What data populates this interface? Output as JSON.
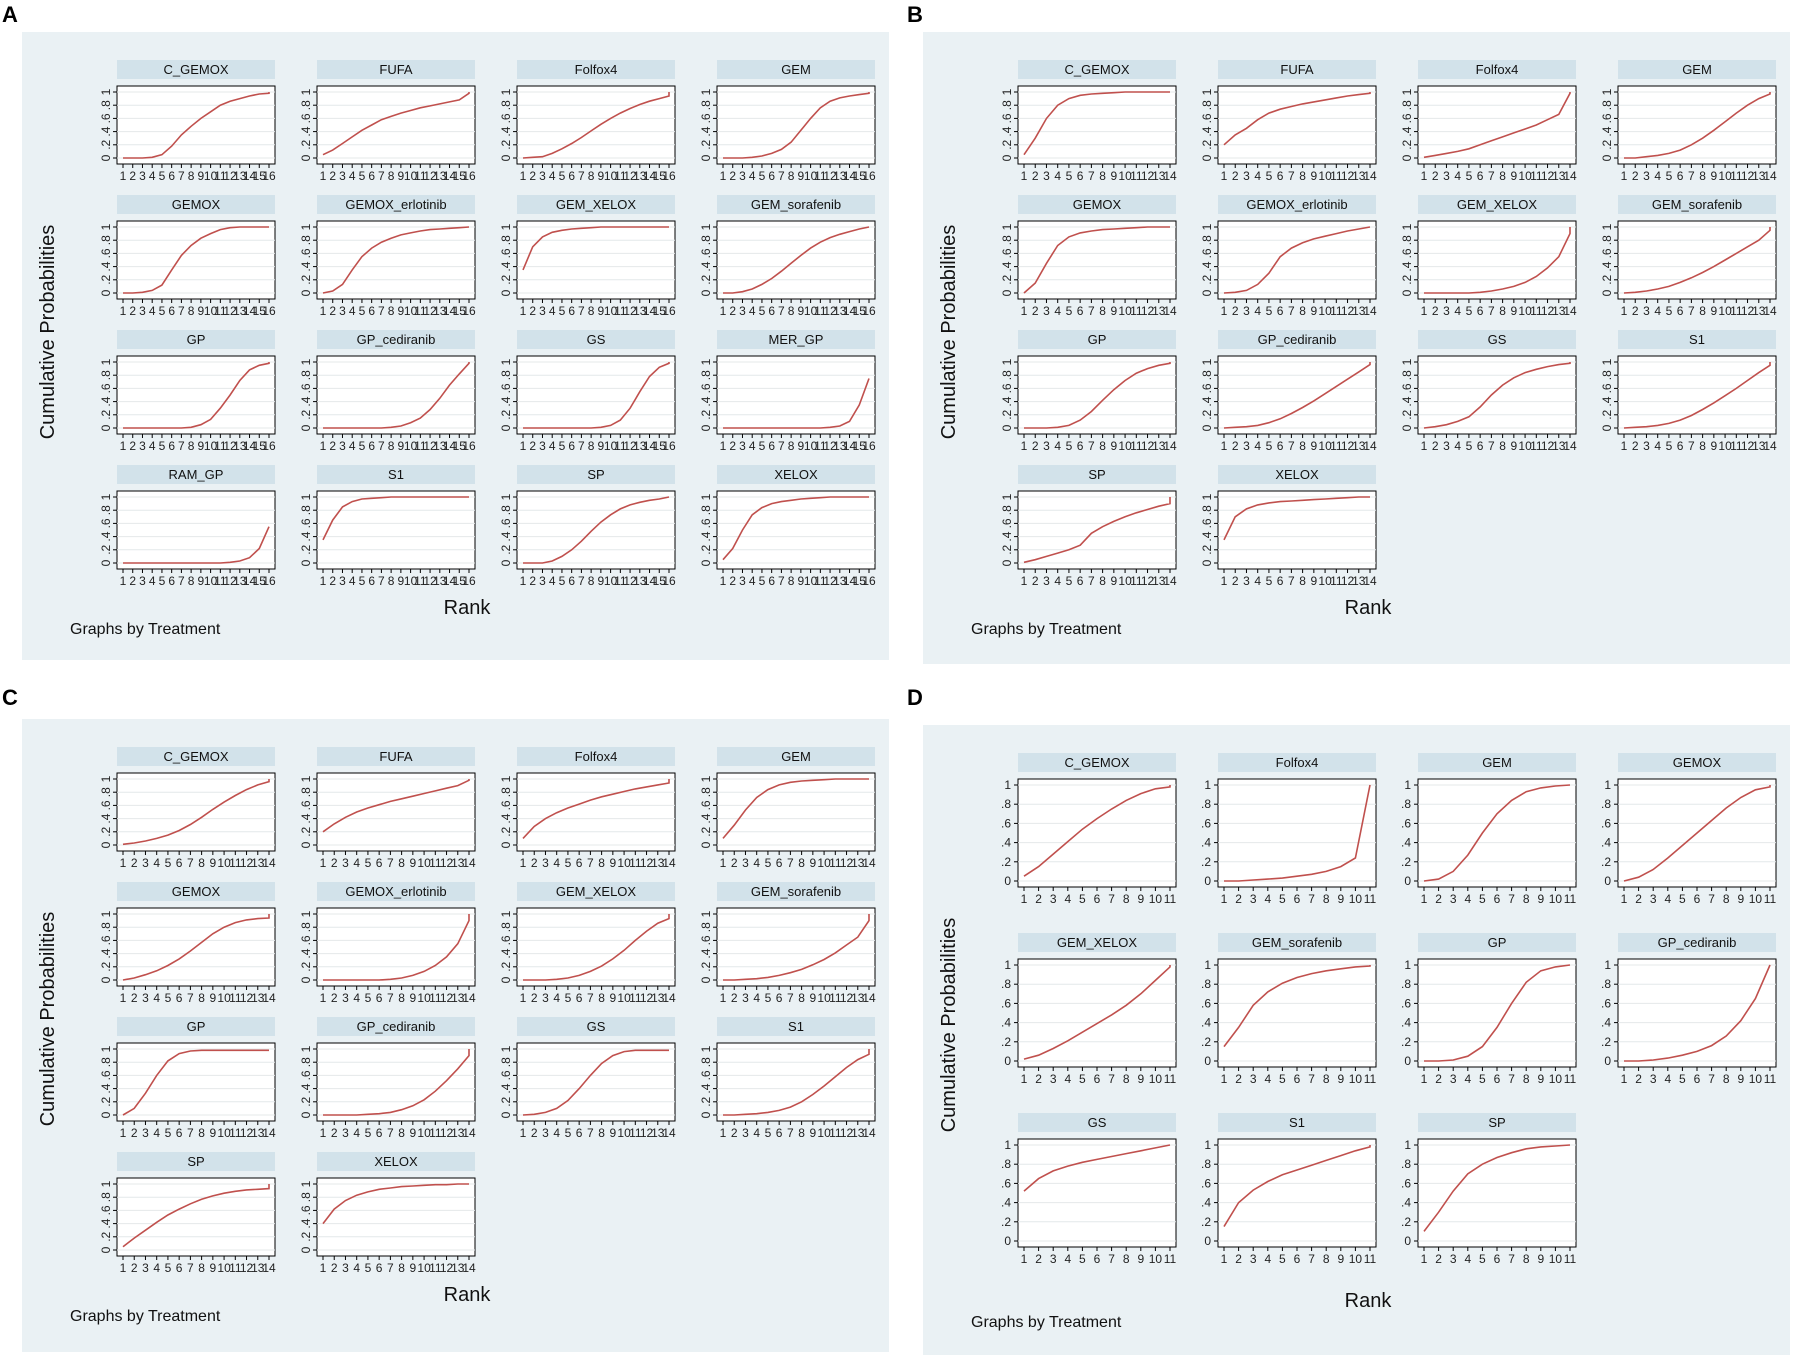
{
  "chart_data": [
    {
      "type": "line",
      "panel": "A",
      "ylabel": "Cumulative Probabilities",
      "xlabel": "Rank",
      "note": "Graphs by Treatment",
      "ranks": 16,
      "ylim": [
        0,
        1
      ],
      "ytick_labels": [
        "0",
        ".2",
        ".4",
        ".6",
        ".8",
        "1"
      ],
      "series": [
        {
          "name": "C_GEMOX",
          "values": [
            0,
            0,
            0,
            0.01,
            0.05,
            0.18,
            0.35,
            0.48,
            0.6,
            0.7,
            0.8,
            0.86,
            0.9,
            0.94,
            0.97,
            0.98
          ]
        },
        {
          "name": "FUFA",
          "values": [
            0.05,
            0.12,
            0.22,
            0.32,
            0.42,
            0.5,
            0.58,
            0.63,
            0.68,
            0.72,
            0.76,
            0.79,
            0.82,
            0.85,
            0.88,
            0.98
          ]
        },
        {
          "name": "Folfox4",
          "values": [
            0,
            0.01,
            0.02,
            0.07,
            0.14,
            0.22,
            0.31,
            0.41,
            0.51,
            0.6,
            0.68,
            0.75,
            0.81,
            0.86,
            0.9,
            0.94
          ]
        },
        {
          "name": "GEM",
          "values": [
            0,
            0,
            0,
            0.01,
            0.03,
            0.07,
            0.13,
            0.24,
            0.42,
            0.6,
            0.76,
            0.86,
            0.91,
            0.94,
            0.96,
            0.98
          ]
        },
        {
          "name": "GEMOX",
          "values": [
            0,
            0,
            0.01,
            0.04,
            0.12,
            0.35,
            0.57,
            0.72,
            0.83,
            0.9,
            0.96,
            0.99,
            1,
            1,
            1,
            1
          ]
        },
        {
          "name": "GEMOX_erlotinib",
          "values": [
            0,
            0.03,
            0.13,
            0.35,
            0.55,
            0.68,
            0.77,
            0.83,
            0.88,
            0.91,
            0.94,
            0.96,
            0.97,
            0.98,
            0.99,
            1
          ]
        },
        {
          "name": "GEM_XELOX",
          "values": [
            0.35,
            0.7,
            0.85,
            0.92,
            0.95,
            0.97,
            0.98,
            0.99,
            1,
            1,
            1,
            1,
            1,
            1,
            1,
            1
          ]
        },
        {
          "name": "GEM_sorafenib",
          "values": [
            0,
            0,
            0.02,
            0.06,
            0.13,
            0.22,
            0.33,
            0.45,
            0.57,
            0.68,
            0.77,
            0.84,
            0.89,
            0.93,
            0.97,
            1
          ]
        },
        {
          "name": "GP",
          "values": [
            0,
            0,
            0,
            0,
            0,
            0,
            0,
            0.01,
            0.05,
            0.13,
            0.3,
            0.5,
            0.72,
            0.88,
            0.95,
            0.98
          ]
        },
        {
          "name": "GP_cediranib",
          "values": [
            0,
            0,
            0,
            0,
            0,
            0,
            0,
            0.01,
            0.03,
            0.08,
            0.15,
            0.28,
            0.45,
            0.65,
            0.82,
            0.98
          ]
        },
        {
          "name": "GS",
          "values": [
            0,
            0,
            0,
            0,
            0,
            0,
            0,
            0,
            0.01,
            0.04,
            0.12,
            0.3,
            0.55,
            0.78,
            0.92,
            0.98
          ]
        },
        {
          "name": "MER_GP",
          "values": [
            0,
            0,
            0,
            0,
            0,
            0,
            0,
            0,
            0,
            0,
            0,
            0.01,
            0.03,
            0.1,
            0.35,
            0.75
          ]
        },
        {
          "name": "RAM_GP",
          "values": [
            0,
            0,
            0,
            0,
            0,
            0,
            0,
            0,
            0,
            0,
            0,
            0.01,
            0.03,
            0.08,
            0.22,
            0.55
          ]
        },
        {
          "name": "S1",
          "values": [
            0.35,
            0.65,
            0.85,
            0.93,
            0.97,
            0.98,
            0.99,
            1,
            1,
            1,
            1,
            1,
            1,
            1,
            1,
            1
          ]
        },
        {
          "name": "SP",
          "values": [
            0,
            0,
            0,
            0.03,
            0.1,
            0.2,
            0.33,
            0.48,
            0.62,
            0.73,
            0.82,
            0.88,
            0.92,
            0.95,
            0.97,
            1
          ]
        },
        {
          "name": "XELOX",
          "values": [
            0.05,
            0.22,
            0.5,
            0.73,
            0.84,
            0.9,
            0.93,
            0.95,
            0.97,
            0.98,
            0.99,
            1,
            1,
            1,
            1,
            1
          ]
        }
      ]
    },
    {
      "type": "line",
      "panel": "B",
      "ylabel": "Cumulative Probabilities",
      "xlabel": "Rank",
      "note": "Graphs by Treatment",
      "ranks": 14,
      "ylim": [
        0,
        1
      ],
      "ytick_labels": [
        "0",
        ".2",
        ".4",
        ".6",
        ".8",
        "1"
      ],
      "series": [
        {
          "name": "C_GEMOX",
          "values": [
            0.05,
            0.3,
            0.6,
            0.8,
            0.9,
            0.95,
            0.97,
            0.98,
            0.99,
            1,
            1,
            1,
            1,
            1
          ]
        },
        {
          "name": "FUFA",
          "values": [
            0.2,
            0.35,
            0.45,
            0.58,
            0.68,
            0.74,
            0.78,
            0.82,
            0.85,
            0.88,
            0.91,
            0.94,
            0.96,
            0.98
          ]
        },
        {
          "name": "Folfox4",
          "values": [
            0.01,
            0.04,
            0.07,
            0.1,
            0.14,
            0.2,
            0.26,
            0.32,
            0.38,
            0.44,
            0.5,
            0.58,
            0.66,
            0.98
          ]
        },
        {
          "name": "GEM",
          "values": [
            0,
            0,
            0.02,
            0.04,
            0.07,
            0.12,
            0.2,
            0.3,
            0.42,
            0.55,
            0.68,
            0.8,
            0.9,
            0.97
          ]
        },
        {
          "name": "GEMOX",
          "values": [
            0,
            0.15,
            0.45,
            0.72,
            0.85,
            0.91,
            0.94,
            0.96,
            0.97,
            0.98,
            0.99,
            1,
            1,
            1
          ]
        },
        {
          "name": "GEMOX_erlotinib",
          "values": [
            0,
            0.01,
            0.04,
            0.13,
            0.3,
            0.55,
            0.68,
            0.76,
            0.82,
            0.86,
            0.9,
            0.94,
            0.97,
            1
          ]
        },
        {
          "name": "GEM_XELOX",
          "values": [
            0,
            0,
            0,
            0,
            0,
            0.01,
            0.03,
            0.06,
            0.1,
            0.16,
            0.25,
            0.38,
            0.55,
            0.9
          ]
        },
        {
          "name": "GEM_sorafenib",
          "values": [
            0,
            0.01,
            0.03,
            0.06,
            0.1,
            0.16,
            0.23,
            0.31,
            0.4,
            0.5,
            0.6,
            0.7,
            0.8,
            0.95
          ]
        },
        {
          "name": "GP",
          "values": [
            0,
            0,
            0,
            0.01,
            0.04,
            0.12,
            0.25,
            0.42,
            0.58,
            0.72,
            0.83,
            0.9,
            0.95,
            0.98
          ]
        },
        {
          "name": "GP_cediranib",
          "values": [
            0,
            0.01,
            0.02,
            0.04,
            0.08,
            0.14,
            0.22,
            0.31,
            0.41,
            0.52,
            0.63,
            0.74,
            0.85,
            0.96
          ]
        },
        {
          "name": "GS",
          "values": [
            0,
            0.02,
            0.05,
            0.1,
            0.17,
            0.32,
            0.5,
            0.65,
            0.76,
            0.84,
            0.89,
            0.93,
            0.96,
            0.98
          ]
        },
        {
          "name": "S1",
          "values": [
            0,
            0.01,
            0.02,
            0.04,
            0.07,
            0.12,
            0.19,
            0.28,
            0.38,
            0.49,
            0.6,
            0.72,
            0.84,
            0.95
          ]
        },
        {
          "name": "SP",
          "values": [
            0.01,
            0.05,
            0.1,
            0.15,
            0.2,
            0.27,
            0.45,
            0.55,
            0.63,
            0.7,
            0.76,
            0.81,
            0.86,
            0.9
          ]
        },
        {
          "name": "XELOX",
          "values": [
            0.35,
            0.7,
            0.82,
            0.88,
            0.91,
            0.93,
            0.94,
            0.95,
            0.96,
            0.97,
            0.98,
            0.99,
            1,
            1
          ]
        }
      ]
    },
    {
      "type": "line",
      "panel": "C",
      "ylabel": "Cumulative Probabilities",
      "xlabel": "Rank",
      "note": "Graphs by Treatment",
      "ranks": 14,
      "ylim": [
        0,
        1
      ],
      "ytick_labels": [
        "0",
        ".2",
        ".4",
        ".6",
        ".8",
        "1"
      ],
      "series": [
        {
          "name": "C_GEMOX",
          "values": [
            0.01,
            0.03,
            0.06,
            0.1,
            0.15,
            0.22,
            0.31,
            0.42,
            0.54,
            0.65,
            0.75,
            0.84,
            0.91,
            0.96
          ]
        },
        {
          "name": "FUFA",
          "values": [
            0.2,
            0.32,
            0.42,
            0.5,
            0.56,
            0.61,
            0.66,
            0.7,
            0.74,
            0.78,
            0.82,
            0.86,
            0.9,
            0.98
          ]
        },
        {
          "name": "Folfox4",
          "values": [
            0.1,
            0.28,
            0.4,
            0.49,
            0.56,
            0.62,
            0.68,
            0.73,
            0.77,
            0.81,
            0.85,
            0.88,
            0.91,
            0.94
          ]
        },
        {
          "name": "GEM",
          "values": [
            0.1,
            0.3,
            0.53,
            0.72,
            0.84,
            0.91,
            0.95,
            0.97,
            0.98,
            0.99,
            1,
            1,
            1,
            1
          ]
        },
        {
          "name": "GEMOX",
          "values": [
            0,
            0.03,
            0.08,
            0.14,
            0.22,
            0.32,
            0.44,
            0.57,
            0.7,
            0.8,
            0.87,
            0.91,
            0.93,
            0.94
          ]
        },
        {
          "name": "GEMOX_erlotinib",
          "values": [
            0,
            0,
            0,
            0,
            0,
            0,
            0.01,
            0.03,
            0.07,
            0.13,
            0.22,
            0.35,
            0.55,
            0.9
          ]
        },
        {
          "name": "GEM_XELOX",
          "values": [
            0,
            0,
            0,
            0.01,
            0.03,
            0.07,
            0.13,
            0.21,
            0.32,
            0.45,
            0.6,
            0.74,
            0.86,
            0.93
          ]
        },
        {
          "name": "GEM_sorafenib",
          "values": [
            0,
            0,
            0.01,
            0.02,
            0.04,
            0.07,
            0.11,
            0.16,
            0.23,
            0.31,
            0.41,
            0.53,
            0.65,
            0.9
          ]
        },
        {
          "name": "GP",
          "values": [
            0,
            0.1,
            0.33,
            0.6,
            0.82,
            0.93,
            0.97,
            0.98,
            0.98,
            0.98,
            0.98,
            0.98,
            0.98,
            0.98
          ]
        },
        {
          "name": "GP_cediranib",
          "values": [
            0,
            0,
            0,
            0,
            0.01,
            0.02,
            0.04,
            0.08,
            0.14,
            0.23,
            0.36,
            0.52,
            0.7,
            0.9
          ]
        },
        {
          "name": "GS",
          "values": [
            0,
            0.01,
            0.04,
            0.1,
            0.22,
            0.4,
            0.6,
            0.78,
            0.9,
            0.96,
            0.98,
            0.98,
            0.98,
            0.98
          ]
        },
        {
          "name": "S1",
          "values": [
            0,
            0,
            0.01,
            0.02,
            0.04,
            0.07,
            0.12,
            0.2,
            0.31,
            0.44,
            0.58,
            0.72,
            0.84,
            0.92
          ]
        },
        {
          "name": "SP",
          "values": [
            0.05,
            0.18,
            0.3,
            0.42,
            0.53,
            0.62,
            0.7,
            0.77,
            0.82,
            0.86,
            0.89,
            0.91,
            0.92,
            0.93
          ]
        },
        {
          "name": "XELOX",
          "values": [
            0.4,
            0.62,
            0.75,
            0.83,
            0.88,
            0.92,
            0.94,
            0.96,
            0.97,
            0.98,
            0.99,
            0.99,
            1,
            1
          ]
        }
      ]
    },
    {
      "type": "line",
      "panel": "D",
      "ylabel": "Cumulative Probabilities",
      "xlabel": "Rank",
      "note": "Graphs by Treatment",
      "ranks": 11,
      "ylim": [
        0,
        1
      ],
      "ytick_labels": [
        "0",
        ".2",
        ".4",
        ".6",
        ".8",
        "1"
      ],
      "series": [
        {
          "name": "C_GEMOX",
          "values": [
            0.05,
            0.15,
            0.28,
            0.41,
            0.54,
            0.65,
            0.75,
            0.84,
            0.91,
            0.96,
            0.98
          ]
        },
        {
          "name": "Folfox4",
          "values": [
            0,
            0,
            0.01,
            0.02,
            0.03,
            0.05,
            0.07,
            0.1,
            0.15,
            0.24,
            1
          ]
        },
        {
          "name": "GEM",
          "values": [
            0,
            0.02,
            0.1,
            0.27,
            0.5,
            0.7,
            0.84,
            0.93,
            0.97,
            0.99,
            1
          ]
        },
        {
          "name": "GEMOX",
          "values": [
            0,
            0.04,
            0.12,
            0.24,
            0.37,
            0.5,
            0.63,
            0.76,
            0.87,
            0.95,
            0.98
          ]
        },
        {
          "name": "GEM_XELOX",
          "values": [
            0.02,
            0.06,
            0.13,
            0.21,
            0.3,
            0.39,
            0.48,
            0.58,
            0.7,
            0.84,
            0.98
          ]
        },
        {
          "name": "GEM_sorafenib",
          "values": [
            0.15,
            0.35,
            0.58,
            0.72,
            0.81,
            0.87,
            0.91,
            0.94,
            0.96,
            0.98,
            0.99
          ]
        },
        {
          "name": "GP",
          "values": [
            0,
            0,
            0.01,
            0.05,
            0.15,
            0.35,
            0.6,
            0.82,
            0.94,
            0.98,
            1
          ]
        },
        {
          "name": "GP_cediranib",
          "values": [
            0,
            0,
            0.01,
            0.03,
            0.06,
            0.1,
            0.16,
            0.26,
            0.42,
            0.65,
            1
          ]
        },
        {
          "name": "GS",
          "values": [
            0.52,
            0.65,
            0.73,
            0.78,
            0.82,
            0.85,
            0.88,
            0.91,
            0.94,
            0.97,
            1
          ]
        },
        {
          "name": "S1",
          "values": [
            0.15,
            0.4,
            0.53,
            0.62,
            0.69,
            0.74,
            0.79,
            0.84,
            0.89,
            0.94,
            0.98
          ]
        },
        {
          "name": "SP",
          "values": [
            0.1,
            0.3,
            0.52,
            0.7,
            0.8,
            0.87,
            0.92,
            0.96,
            0.98,
            0.99,
            1
          ]
        }
      ]
    }
  ]
}
